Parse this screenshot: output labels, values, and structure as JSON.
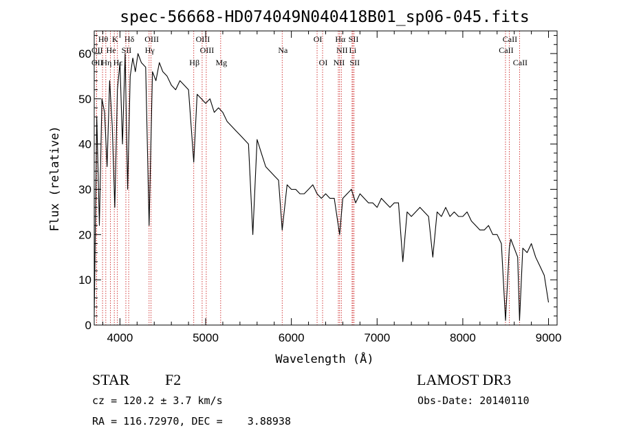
{
  "chart_data": {
    "type": "line",
    "title": "spec-56668-HD074049N040418B01_sp06-045.fits",
    "xlabel": "Wavelength (Å)",
    "ylabel": "Flux (relative)",
    "xlim": [
      3700,
      9100
    ],
    "ylim": [
      0,
      65
    ],
    "xticks": [
      4000,
      5000,
      6000,
      7000,
      8000,
      9000
    ],
    "yticks": [
      0,
      10,
      20,
      30,
      40,
      50,
      60
    ],
    "series": [
      {
        "x": [
          3700,
          3730,
          3760,
          3790,
          3820,
          3850,
          3880,
          3910,
          3940,
          3970,
          4000,
          4030,
          4060,
          4090,
          4120,
          4150,
          4180,
          4210,
          4250,
          4300,
          4340,
          4380,
          4420,
          4460,
          4500,
          4550,
          4600,
          4650,
          4700,
          4750,
          4800,
          4861,
          4900,
          4950,
          5000,
          5050,
          5100,
          5150,
          5200,
          5250,
          5300,
          5350,
          5400,
          5450,
          5500,
          5550,
          5600,
          5650,
          5700,
          5750,
          5800,
          5850,
          5893,
          5950,
          6000,
          6050,
          6100,
          6150,
          6200,
          6250,
          6300,
          6350,
          6400,
          6450,
          6500,
          6563,
          6600,
          6650,
          6700,
          6750,
          6800,
          6850,
          6900,
          6950,
          7000,
          7050,
          7100,
          7150,
          7200,
          7250,
          7300,
          7350,
          7400,
          7450,
          7500,
          7550,
          7600,
          7650,
          7700,
          7750,
          7800,
          7850,
          7900,
          7950,
          8000,
          8050,
          8100,
          8150,
          8200,
          8250,
          8300,
          8350,
          8400,
          8450,
          8498,
          8542,
          8560,
          8600,
          8640,
          8662,
          8700,
          8750,
          8800,
          8850,
          8900,
          8950,
          9000
        ],
        "y": [
          2,
          46,
          22,
          50,
          47,
          35,
          54,
          44,
          26,
          52,
          58,
          40,
          60,
          30,
          55,
          59,
          56,
          60,
          58,
          57,
          22,
          56,
          54,
          58,
          56,
          55,
          53,
          52,
          54,
          53,
          52,
          36,
          51,
          50,
          49,
          50,
          47,
          48,
          47,
          45,
          44,
          43,
          42,
          41,
          40,
          20,
          41,
          38,
          35,
          34,
          33,
          32,
          21,
          31,
          30,
          30,
          29,
          29,
          30,
          31,
          29,
          28,
          29,
          28,
          28,
          20,
          28,
          29,
          30,
          27,
          29,
          28,
          27,
          27,
          26,
          28,
          27,
          26,
          27,
          27,
          14,
          25,
          24,
          25,
          26,
          25,
          24,
          15,
          25,
          24,
          26,
          24,
          25,
          24,
          24,
          25,
          23,
          22,
          21,
          21,
          22,
          20,
          20,
          18,
          1,
          17,
          19,
          17,
          15,
          1,
          17,
          16,
          18,
          15,
          13,
          11,
          5
        ]
      }
    ],
    "spectral_lines": [
      {
        "label": "Hθ",
        "wl": 3797,
        "row": 1
      },
      {
        "label": "OII",
        "wl": 3727,
        "row": 2
      },
      {
        "label": "He",
        "wl": 3889,
        "row": 2
      },
      {
        "label": "Hη",
        "wl": 3835,
        "row": 3
      },
      {
        "label": "OII",
        "wl": 3727,
        "row": 3
      },
      {
        "label": "K",
        "wl": 3934,
        "row": 1
      },
      {
        "label": "Hδ",
        "wl": 4102,
        "row": 1
      },
      {
        "label": "SII",
        "wl": 4069,
        "row": 2
      },
      {
        "label": "Hε",
        "wl": 3970,
        "row": 3
      },
      {
        "label": "OIII",
        "wl": 4363,
        "row": 1
      },
      {
        "label": "Hγ",
        "wl": 4340,
        "row": 2
      },
      {
        "label": "Hβ",
        "wl": 4861,
        "row": 3
      },
      {
        "label": "OIII",
        "wl": 4959,
        "row": 1
      },
      {
        "label": "OIII",
        "wl": 5007,
        "row": 2
      },
      {
        "label": "Mg",
        "wl": 5175,
        "row": 3
      },
      {
        "label": "Na",
        "wl": 5893,
        "row": 2
      },
      {
        "label": "OI",
        "wl": 6300,
        "row": 1
      },
      {
        "label": "OI",
        "wl": 6364,
        "row": 3
      },
      {
        "label": "Hα",
        "wl": 6563,
        "row": 1
      },
      {
        "label": "NII",
        "wl": 6583,
        "row": 2
      },
      {
        "label": "NII",
        "wl": 6548,
        "row": 3
      },
      {
        "label": "SII",
        "wl": 6717,
        "row": 1
      },
      {
        "label": "Li",
        "wl": 6708,
        "row": 2
      },
      {
        "label": "SII",
        "wl": 6731,
        "row": 3
      },
      {
        "label": "CaII",
        "wl": 8542,
        "row": 1
      },
      {
        "label": "CaII",
        "wl": 8498,
        "row": 2
      },
      {
        "label": "CaII",
        "wl": 8662,
        "row": 3
      }
    ]
  },
  "info": {
    "object_class": "STAR",
    "subclass": "F2",
    "survey": "LAMOST DR3",
    "cz": "cz = 120.2 ± 3.7 km/s",
    "obs_date": "Obs-Date: 20140110",
    "radec": "RA = 116.72970, DEC =    3.88938"
  },
  "colors": {
    "spectrum": "#000000",
    "line_marker": "#cc2222"
  }
}
